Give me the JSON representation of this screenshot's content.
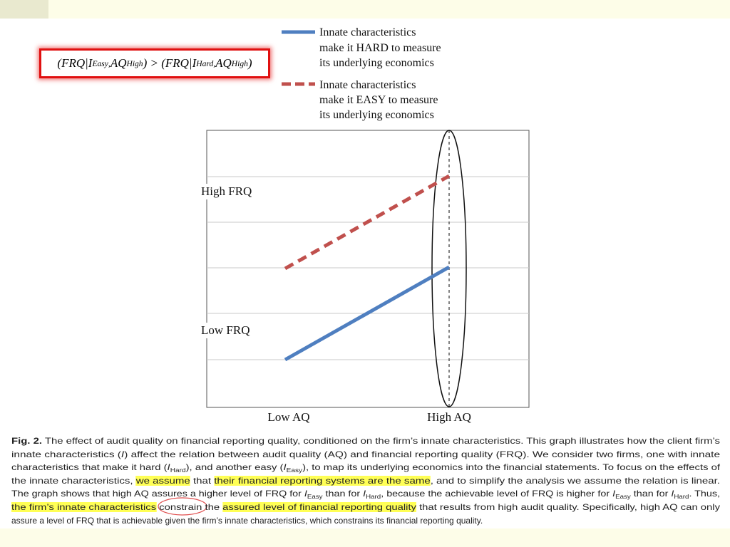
{
  "formula": {
    "parts": [
      "(FRQ|",
      "I",
      "Easy",
      ",",
      "AQ",
      "High",
      ") > (FRQ|",
      "I",
      "Hard",
      ",",
      "AQ",
      "High",
      ")"
    ]
  },
  "legend": [
    {
      "lines": [
        "Innate characteristics",
        "make it HARD to measure",
        "its underlying economics"
      ]
    },
    {
      "lines": [
        "Innate characteristics",
        "make it EASY to measure",
        "its underlying economics"
      ]
    }
  ],
  "axes": {
    "y_labels": [
      "High FRQ",
      "Low FRQ"
    ],
    "x_labels": [
      "Low AQ",
      "High AQ"
    ]
  },
  "caption": {
    "lines": [
      [
        "Fig. 2.",
        " The effect of audit quality on financial reporting quality, conditioned on the firm’s innate characteristics. This graph illustrates how the client firm’s"
      ],
      [
        "innate characteristics (",
        "I",
        ") affect the relation between audit quality (AQ) and financial reporting quality (FRQ). We consider two firms, one with innate"
      ],
      [
        "characteristics that make it hard (",
        "I",
        "Hard",
        "), and another easy (",
        "I",
        "Easy",
        "), to map its underlying economics into the financial statements. To focus on the effects of"
      ],
      [
        "the innate characteristics, ",
        "we assume",
        " that ",
        "their financial reporting systems are the same",
        ", and to simplify the analysis we assume the relation is linear."
      ],
      [
        "The graph shows that high AQ assures a higher level of FRQ for ",
        "I",
        "Easy",
        " than for ",
        "I",
        "Hard",
        ", because the achievable level of FRQ is higher for ",
        "I",
        "Easy",
        " than for ",
        "I",
        "Hard",
        ". Thus,"
      ],
      [
        "the firm’s innate characteristics",
        " constrain the ",
        "assured level of financial reporting quality",
        " that results from high audit quality. Specifically, high AQ can only"
      ],
      [
        "assure a level of FRQ that is achievable given the firm’s innate characteristics, which constrains its financial reporting quality."
      ]
    ]
  }
}
